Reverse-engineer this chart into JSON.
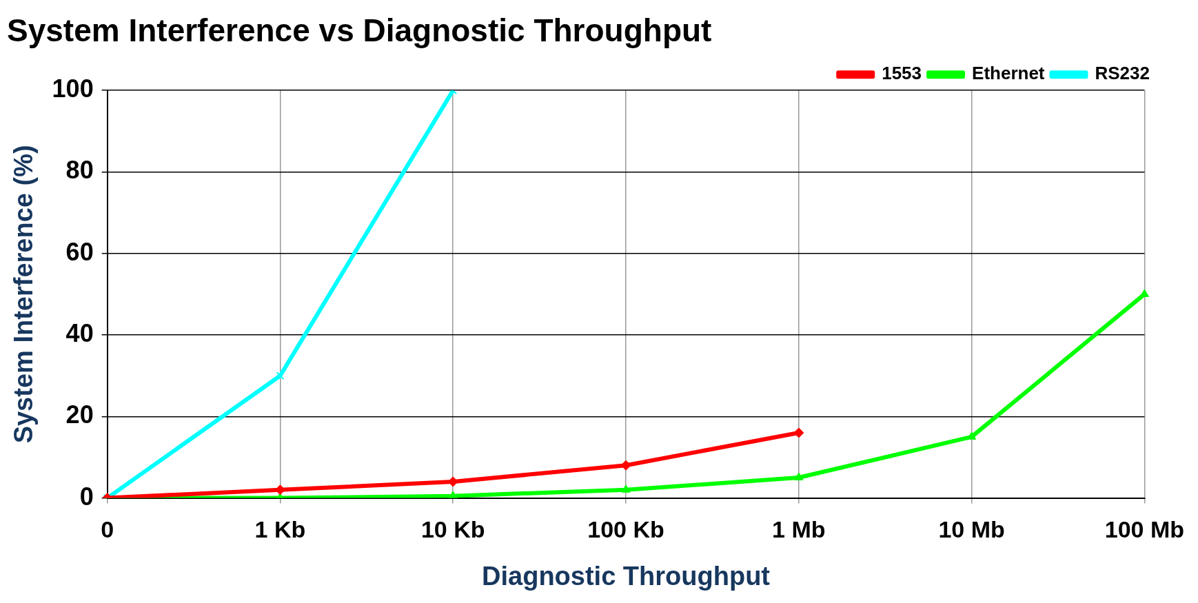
{
  "chart_data": {
    "type": "line",
    "title": "System Interference vs Diagnostic Throughput",
    "xlabel": "Diagnostic Throughput",
    "ylabel": "System Interference (%)",
    "categories": [
      "0",
      "1 Kb",
      "10 Kb",
      "100 Kb",
      "1 Mb",
      "10 Mb",
      "100 Mb"
    ],
    "series": [
      {
        "name": "1553",
        "color": "#ff0000",
        "marker": "diamond",
        "values": [
          0,
          2,
          4,
          8,
          16,
          null,
          null
        ]
      },
      {
        "name": "Ethernet",
        "color": "#00ff00",
        "marker": "triangle",
        "values": [
          0,
          0,
          0.5,
          2,
          5,
          15,
          50
        ]
      },
      {
        "name": "RS232",
        "color": "#00ffff",
        "marker": "cross",
        "values": [
          0,
          30,
          100,
          null,
          null,
          null,
          null
        ]
      }
    ],
    "ylim": [
      0,
      100
    ],
    "yticks": [
      0,
      20,
      40,
      60,
      80,
      100
    ],
    "grid": true,
    "legend": "top right"
  }
}
